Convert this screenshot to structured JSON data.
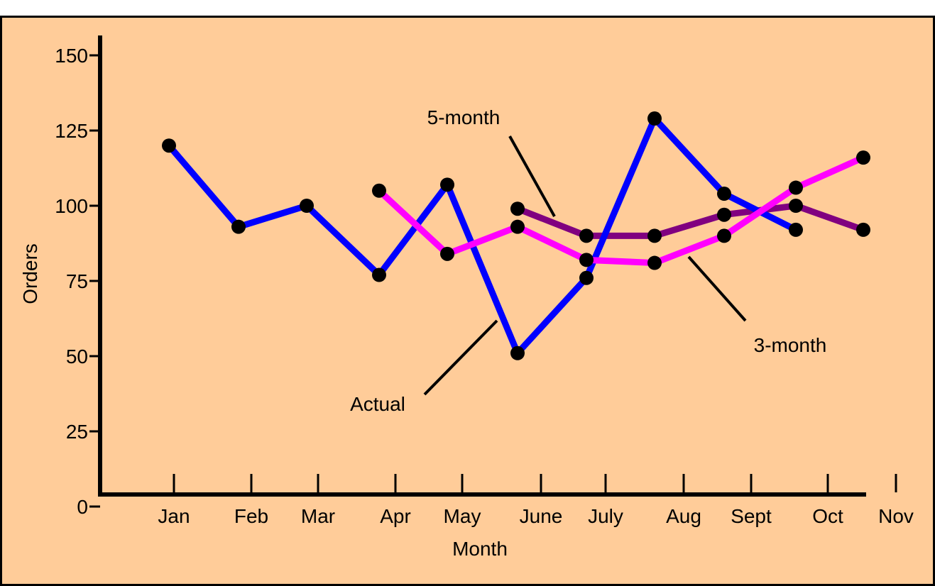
{
  "chart_data": {
    "type": "line",
    "xlabel": "Month",
    "ylabel": "Orders",
    "ylim": [
      0,
      150
    ],
    "yticks": [
      0,
      25,
      50,
      75,
      100,
      125,
      150
    ],
    "categories": [
      "Jan",
      "Feb",
      "Mar",
      "Apr",
      "May",
      "June",
      "July",
      "Aug",
      "Sept",
      "Oct",
      "Nov"
    ],
    "series": [
      {
        "name": "Actual",
        "color": "#0000ff",
        "points": [
          {
            "x": "Jan",
            "y": 120
          },
          {
            "x": "Feb",
            "y": 93
          },
          {
            "x": "Mar",
            "y": 100
          },
          {
            "x": "Apr",
            "y": 77
          },
          {
            "x": "May",
            "y": 107
          },
          {
            "x": "June",
            "y": 51
          },
          {
            "x": "July",
            "y": 76
          },
          {
            "x": "Aug",
            "y": 129
          },
          {
            "x": "Sept",
            "y": 104
          },
          {
            "x": "Oct",
            "y": 92
          }
        ]
      },
      {
        "name": "3-month",
        "color": "#ff00ff",
        "points": [
          {
            "x": "Apr",
            "y": 105
          },
          {
            "x": "May",
            "y": 84
          },
          {
            "x": "June",
            "y": 93
          },
          {
            "x": "July",
            "y": 82
          },
          {
            "x": "Aug",
            "y": 81
          },
          {
            "x": "Sept",
            "y": 90
          },
          {
            "x": "Oct",
            "y": 106
          },
          {
            "x": "Nov",
            "y": 116
          }
        ]
      },
      {
        "name": "5-month",
        "color": "#800080",
        "points": [
          {
            "x": "June",
            "y": 99
          },
          {
            "x": "July",
            "y": 90
          },
          {
            "x": "Aug",
            "y": 90
          },
          {
            "x": "Sept",
            "y": 97
          },
          {
            "x": "Oct",
            "y": 100
          },
          {
            "x": "Nov",
            "y": 92
          }
        ]
      }
    ],
    "annotations": [
      "Actual",
      "3-month",
      "5-month"
    ]
  }
}
